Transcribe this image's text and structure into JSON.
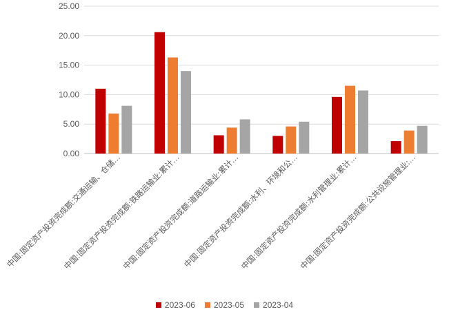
{
  "chart_data": {
    "type": "bar",
    "title": "",
    "xlabel": "",
    "ylabel": "",
    "ylim": [
      0,
      25
    ],
    "yticks": [
      "0.00",
      "5.00",
      "10.00",
      "15.00",
      "20.00",
      "25.00"
    ],
    "grid": true,
    "legend_position": "bottom",
    "categories": [
      "中国:固定资产投资完成额:交通运输、仓储…",
      "中国:固定资产投资完成额:铁路运输业:累计…",
      "中国:固定资产投资完成额:道路运输业:累计…",
      "中国:固定资产投资完成额:水利、环境和公…",
      "中国:固定资产投资完成额:水利管理业:累计…",
      "中国:固定资产投资完成额:公共设施管理业:…"
    ],
    "series": [
      {
        "name": "2023-06",
        "color": "#c00000",
        "values": [
          11.0,
          20.6,
          3.1,
          3.0,
          9.6,
          2.1
        ]
      },
      {
        "name": "2023-05",
        "color": "#ed7d31",
        "values": [
          6.8,
          16.3,
          4.4,
          4.6,
          11.5,
          3.9
        ]
      },
      {
        "name": "2023-04",
        "color": "#a5a5a5",
        "values": [
          8.1,
          14.0,
          5.8,
          5.4,
          10.7,
          4.7
        ]
      }
    ]
  }
}
